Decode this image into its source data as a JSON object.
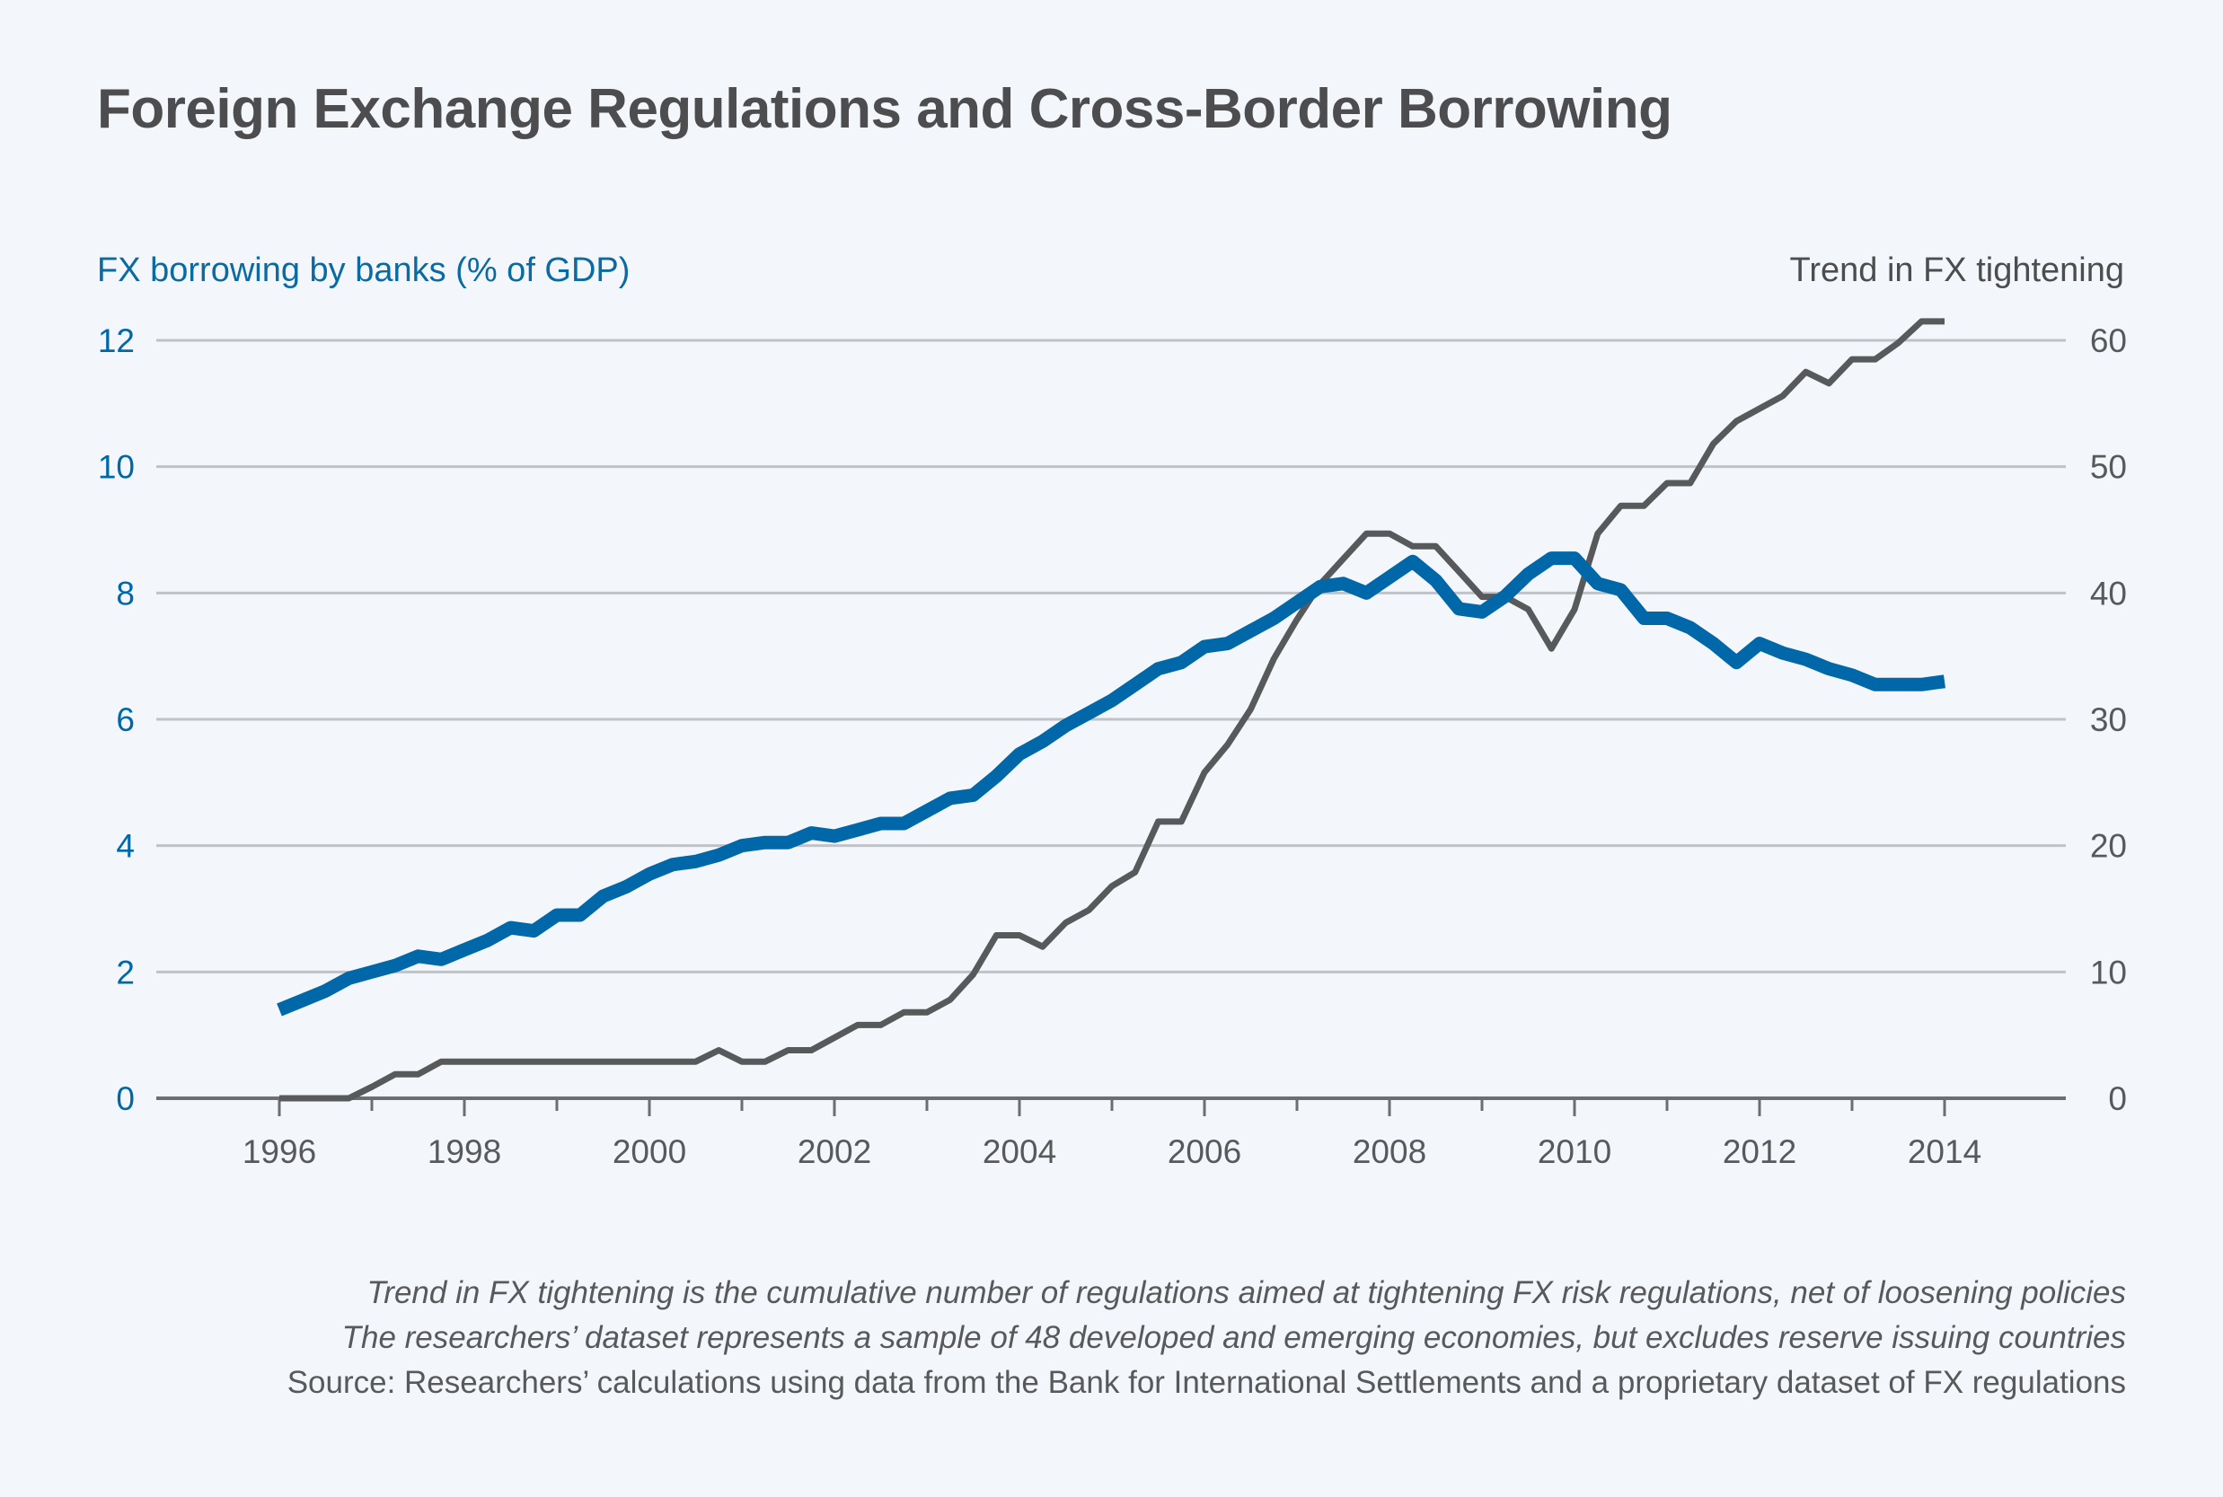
{
  "title": "Foreign Exchange Regulations and Cross-Border Borrowing",
  "notes": [
    "Trend in FX tightening is the cumulative number of regulations aimed at tightening FX risk regulations, net of loosening policies",
    "The researchers’ dataset represents a sample of 48 developed and emerging economies, but excludes reserve issuing countries",
    "Source: Researchers’ calculations using data from the Bank for International Settlements and a proprietary dataset of FX regulations"
  ],
  "chart_data": {
    "type": "line",
    "title": "Foreign Exchange Regulations and Cross-Border Borrowing",
    "ylabel_left": "FX borrowing by banks (% of GDP)",
    "ylabel_right": "Trend in FX tightening",
    "xlim": [
      1994.6,
      2015.3
    ],
    "ylim_left": [
      0,
      12
    ],
    "ylim_right": [
      0,
      60
    ],
    "x_ticks": [
      1996,
      1998,
      2000,
      2002,
      2004,
      2006,
      2008,
      2010,
      2012,
      2014
    ],
    "y_ticks_left": [
      0,
      2,
      4,
      6,
      8,
      10,
      12
    ],
    "y_ticks_right": [
      0,
      10,
      20,
      30,
      40,
      50,
      60
    ],
    "grid": true,
    "x_start": 1996,
    "x_step": 0.25,
    "colors": {
      "blue": "#0068a8",
      "gray": "#58595b",
      "grid": "#bfc3c7",
      "axis": "#6d6e71"
    },
    "series": [
      {
        "name": "FX borrowing by banks (% of GDP)",
        "axis": "left",
        "color": "#0068a8",
        "values": [
          1.4,
          1.55,
          1.7,
          1.9,
          2.0,
          2.1,
          2.25,
          2.2,
          2.35,
          2.5,
          2.7,
          2.65,
          2.9,
          2.9,
          3.2,
          3.35,
          3.55,
          3.7,
          3.75,
          3.85,
          4.0,
          4.05,
          4.05,
          4.2,
          4.15,
          4.25,
          4.35,
          4.35,
          4.55,
          4.75,
          4.8,
          5.1,
          5.45,
          5.65,
          5.9,
          6.1,
          6.3,
          6.55,
          6.8,
          6.9,
          7.15,
          7.2,
          7.4,
          7.6,
          7.85,
          8.1,
          8.15,
          8.0,
          8.25,
          8.5,
          8.2,
          7.75,
          7.7,
          7.95,
          8.3,
          8.55,
          8.55,
          8.15,
          8.05,
          7.6,
          7.6,
          7.45,
          7.2,
          6.9,
          7.2,
          7.05,
          6.95,
          6.8,
          6.7,
          6.55,
          6.55,
          6.55,
          6.6
        ]
      },
      {
        "name": "Trend in FX tightening",
        "axis": "right",
        "color": "#58595b",
        "values": [
          0,
          0,
          0,
          0,
          0.9,
          1.9,
          1.9,
          2.9,
          2.9,
          2.9,
          2.9,
          2.9,
          2.9,
          2.9,
          2.9,
          2.9,
          2.9,
          2.9,
          2.9,
          3.8,
          2.9,
          2.9,
          3.8,
          3.8,
          4.8,
          5.8,
          5.8,
          6.8,
          6.8,
          7.8,
          9.8,
          12.9,
          12.9,
          12,
          13.9,
          14.9,
          16.8,
          17.9,
          21.9,
          21.9,
          25.8,
          28,
          30.8,
          34.8,
          37.9,
          40.7,
          42.7,
          44.7,
          44.7,
          43.7,
          43.7,
          41.7,
          39.7,
          39.7,
          38.7,
          35.6,
          38.7,
          44.7,
          46.9,
          46.9,
          48.7,
          48.7,
          51.8,
          53.6,
          54.6,
          55.6,
          57.5,
          56.6,
          58.5,
          58.5,
          59.8,
          61.5,
          61.5
        ]
      }
    ]
  }
}
